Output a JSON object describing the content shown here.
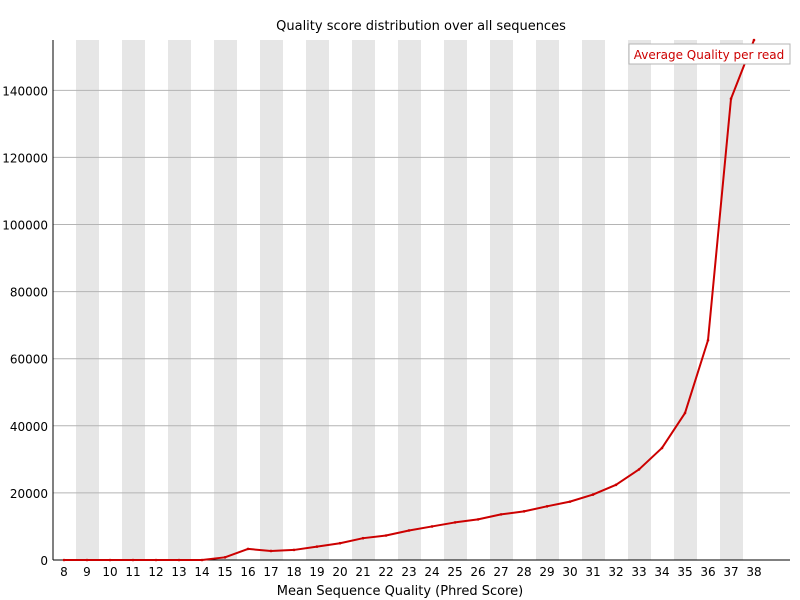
{
  "chart_data": {
    "type": "line",
    "title": "Quality score distribution over all sequences",
    "xlabel": "Mean Sequence Quality (Phred Score)",
    "ylabel": "",
    "x": [
      8,
      9,
      10,
      11,
      12,
      13,
      14,
      15,
      16,
      17,
      18,
      19,
      20,
      21,
      22,
      23,
      24,
      25,
      26,
      27,
      28,
      29,
      30,
      31,
      32,
      33,
      34,
      35,
      36,
      37,
      38
    ],
    "y_ticks": [
      0,
      20000,
      40000,
      60000,
      80000,
      100000,
      120000,
      140000
    ],
    "ylim": [
      0,
      155000
    ],
    "grid": true,
    "legend_position": "top-right",
    "series": [
      {
        "name": "Average Quality per read",
        "color": "#cc0000",
        "values": [
          0,
          0,
          0,
          0,
          0,
          0,
          0,
          800,
          3300,
          2700,
          3000,
          4000,
          5000,
          6500,
          7300,
          8800,
          10000,
          11200,
          12100,
          13600,
          14500,
          16000,
          17400,
          19500,
          22400,
          27000,
          33400,
          43800,
          65500,
          137500,
          155000
        ]
      }
    ]
  }
}
